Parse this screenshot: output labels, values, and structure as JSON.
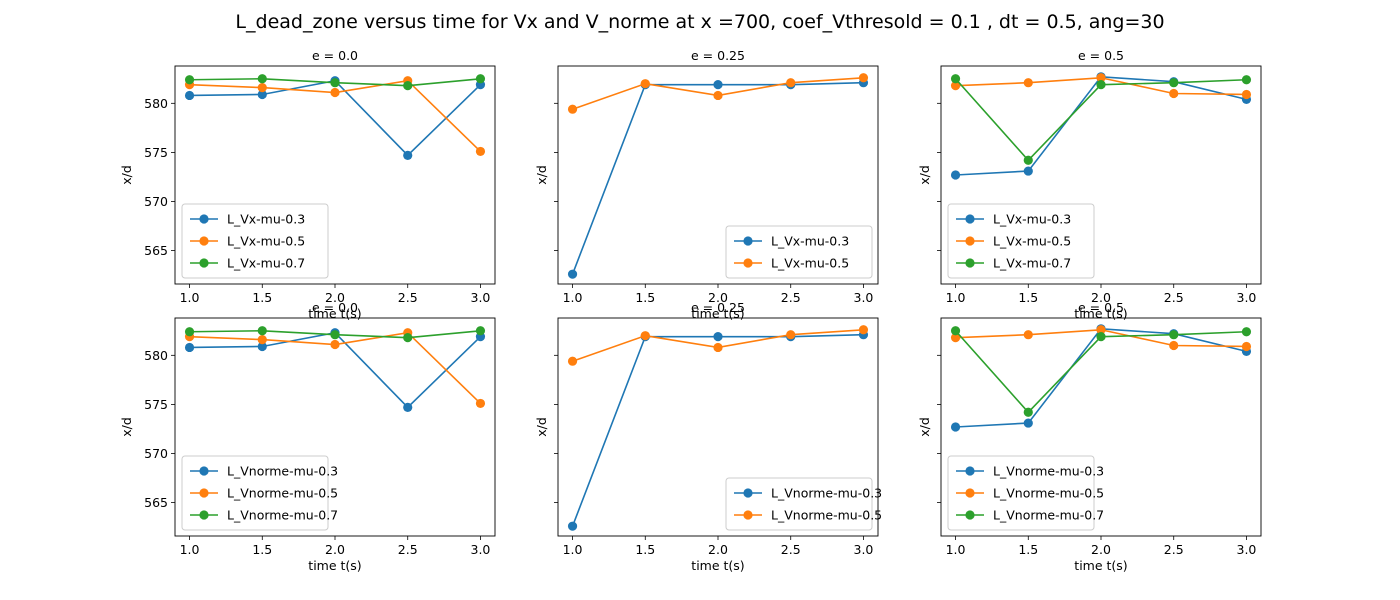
{
  "suptitle": "L_dead_zone versus time for Vx and V_norme at x =700, coef_Vthresold = 0.1 , dt = 0.5, ang=30",
  "colors": {
    "mu-0.3": "#1f77b4",
    "mu-0.5": "#ff7f0e",
    "mu-0.7": "#2ca02c"
  },
  "chart_data": [
    {
      "type": "line",
      "title": "e = 0.0",
      "xlabel": "time t(s)",
      "ylabel": "x/d",
      "x": [
        1.0,
        1.5,
        2.0,
        2.5,
        3.0
      ],
      "xlim": [
        0.9,
        3.1
      ],
      "ylim": [
        561.6,
        583.8
      ],
      "xticks": [
        "1.0",
        "1.5",
        "2.0",
        "2.5",
        "3.0"
      ],
      "yticks": [
        "565",
        "570",
        "575",
        "580"
      ],
      "legend_loc": "lower-left",
      "series": [
        {
          "name": "L_Vx-mu-0.3",
          "color_key": "mu-0.3",
          "values": [
            580.8,
            580.9,
            582.3,
            574.7,
            581.9
          ]
        },
        {
          "name": "L_Vx-mu-0.5",
          "color_key": "mu-0.5",
          "values": [
            581.9,
            581.6,
            581.1,
            582.3,
            575.1
          ]
        },
        {
          "name": "L_Vx-mu-0.7",
          "color_key": "mu-0.7",
          "values": [
            582.4,
            582.5,
            582.1,
            581.8,
            582.5
          ]
        }
      ]
    },
    {
      "type": "line",
      "title": "e = 0.25",
      "xlabel": "time t(s)",
      "ylabel": "x/d",
      "x": [
        1.0,
        1.5,
        2.0,
        2.5,
        3.0
      ],
      "xlim": [
        0.9,
        3.1
      ],
      "ylim": [
        561.6,
        583.8
      ],
      "xticks": [
        "1.0",
        "1.5",
        "2.0",
        "2.5",
        "3.0"
      ],
      "yticks": [
        "",
        "",
        "",
        ""
      ],
      "legend_loc": "lower-right",
      "series": [
        {
          "name": "L_Vx-mu-0.3",
          "color_key": "mu-0.3",
          "values": [
            562.6,
            581.9,
            581.9,
            581.9,
            582.1
          ]
        },
        {
          "name": "L_Vx-mu-0.5",
          "color_key": "mu-0.5",
          "values": [
            579.4,
            582.0,
            580.8,
            582.1,
            582.6
          ]
        }
      ]
    },
    {
      "type": "line",
      "title": "e = 0.5",
      "xlabel": "time t(s)",
      "ylabel": "x/d",
      "x": [
        1.0,
        1.5,
        2.0,
        2.5,
        3.0
      ],
      "xlim": [
        0.9,
        3.1
      ],
      "ylim": [
        561.6,
        583.8
      ],
      "xticks": [
        "1.0",
        "1.5",
        "2.0",
        "2.5",
        "3.0"
      ],
      "yticks": [
        "",
        "",
        "",
        ""
      ],
      "legend_loc": "lower-left",
      "series": [
        {
          "name": "L_Vx-mu-0.3",
          "color_key": "mu-0.3",
          "values": [
            572.7,
            573.1,
            582.7,
            582.2,
            580.4
          ]
        },
        {
          "name": "L_Vx-mu-0.5",
          "color_key": "mu-0.5",
          "values": [
            581.8,
            582.1,
            582.6,
            581.0,
            580.9
          ]
        },
        {
          "name": "L_Vx-mu-0.7",
          "color_key": "mu-0.7",
          "values": [
            582.5,
            574.2,
            581.9,
            582.1,
            582.4
          ]
        }
      ]
    },
    {
      "type": "line",
      "title": "e = 0.0",
      "xlabel": "time t(s)",
      "ylabel": "x/d",
      "x": [
        1.0,
        1.5,
        2.0,
        2.5,
        3.0
      ],
      "xlim": [
        0.9,
        3.1
      ],
      "ylim": [
        561.6,
        583.8
      ],
      "xticks": [
        "1.0",
        "1.5",
        "2.0",
        "2.5",
        "3.0"
      ],
      "yticks": [
        "565",
        "570",
        "575",
        "580"
      ],
      "legend_loc": "lower-left",
      "series": [
        {
          "name": "L_Vnorme-mu-0.3",
          "color_key": "mu-0.3",
          "values": [
            580.8,
            580.9,
            582.3,
            574.7,
            581.9
          ]
        },
        {
          "name": "L_Vnorme-mu-0.5",
          "color_key": "mu-0.5",
          "values": [
            581.9,
            581.6,
            581.1,
            582.3,
            575.1
          ]
        },
        {
          "name": "L_Vnorme-mu-0.7",
          "color_key": "mu-0.7",
          "values": [
            582.4,
            582.5,
            582.1,
            581.8,
            582.5
          ]
        }
      ]
    },
    {
      "type": "line",
      "title": "e = 0.25",
      "xlabel": "time t(s)",
      "ylabel": "x/d",
      "x": [
        1.0,
        1.5,
        2.0,
        2.5,
        3.0
      ],
      "xlim": [
        0.9,
        3.1
      ],
      "ylim": [
        561.6,
        583.8
      ],
      "xticks": [
        "1.0",
        "1.5",
        "2.0",
        "2.5",
        "3.0"
      ],
      "yticks": [
        "",
        "",
        "",
        ""
      ],
      "legend_loc": "lower-right",
      "series": [
        {
          "name": "L_Vnorme-mu-0.3",
          "color_key": "mu-0.3",
          "values": [
            562.6,
            581.9,
            581.9,
            581.9,
            582.1
          ]
        },
        {
          "name": "L_Vnorme-mu-0.5",
          "color_key": "mu-0.5",
          "values": [
            579.4,
            582.0,
            580.8,
            582.1,
            582.6
          ]
        }
      ]
    },
    {
      "type": "line",
      "title": "e = 0.5",
      "xlabel": "time t(s)",
      "ylabel": "x/d",
      "x": [
        1.0,
        1.5,
        2.0,
        2.5,
        3.0
      ],
      "xlim": [
        0.9,
        3.1
      ],
      "ylim": [
        561.6,
        583.8
      ],
      "xticks": [
        "1.0",
        "1.5",
        "2.0",
        "2.5",
        "3.0"
      ],
      "yticks": [
        "",
        "",
        "",
        ""
      ],
      "legend_loc": "lower-left",
      "series": [
        {
          "name": "L_Vnorme-mu-0.3",
          "color_key": "mu-0.3",
          "values": [
            572.7,
            573.1,
            582.7,
            582.2,
            580.4
          ]
        },
        {
          "name": "L_Vnorme-mu-0.5",
          "color_key": "mu-0.5",
          "values": [
            581.8,
            582.1,
            582.6,
            581.0,
            580.9
          ]
        },
        {
          "name": "L_Vnorme-mu-0.7",
          "color_key": "mu-0.7",
          "values": [
            582.5,
            574.2,
            581.9,
            582.1,
            582.4
          ]
        }
      ]
    }
  ]
}
